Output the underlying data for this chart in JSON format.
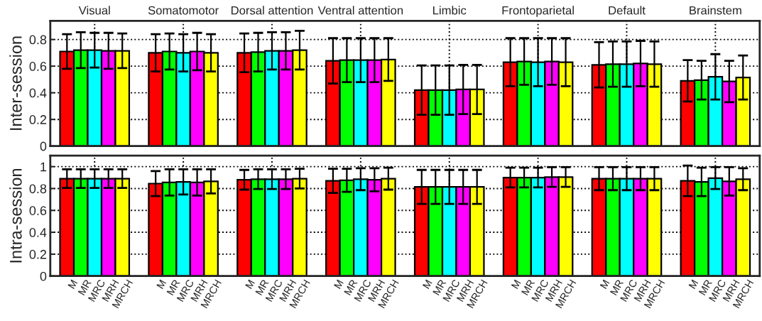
{
  "chart_data": [
    {
      "type": "bar",
      "ylabel": "Inter-session",
      "categories": [
        "Visual",
        "Somatomotor",
        "Dorsal attention",
        "Ventral attention",
        "Limbic",
        "Frontoparietal",
        "Default",
        "Brainstem"
      ],
      "ylim": [
        0,
        0.94
      ],
      "yticks": [
        0,
        0.2,
        0.4,
        0.6,
        0.8
      ],
      "grid": true,
      "series": [
        {
          "color": "#ff0000",
          "values": [
            0.71,
            0.7,
            0.7,
            0.64,
            0.42,
            0.63,
            0.61,
            0.49
          ],
          "errors": [
            0.13,
            0.14,
            0.145,
            0.17,
            0.185,
            0.18,
            0.17,
            0.155
          ]
        },
        {
          "color": "#00ff00",
          "values": [
            0.72,
            0.71,
            0.705,
            0.645,
            0.42,
            0.635,
            0.615,
            0.495
          ],
          "errors": [
            0.135,
            0.135,
            0.145,
            0.165,
            0.185,
            0.175,
            0.17,
            0.145
          ]
        },
        {
          "color": "#00ffff",
          "values": [
            0.72,
            0.7,
            0.715,
            0.645,
            0.42,
            0.63,
            0.615,
            0.52
          ],
          "errors": [
            0.13,
            0.14,
            0.14,
            0.165,
            0.185,
            0.18,
            0.17,
            0.17
          ]
        },
        {
          "color": "#ff00ff",
          "values": [
            0.715,
            0.71,
            0.715,
            0.645,
            0.425,
            0.635,
            0.62,
            0.485
          ],
          "errors": [
            0.135,
            0.14,
            0.14,
            0.165,
            0.185,
            0.175,
            0.17,
            0.155
          ]
        },
        {
          "color": "#ffff00",
          "values": [
            0.715,
            0.7,
            0.72,
            0.65,
            0.425,
            0.63,
            0.615,
            0.515
          ],
          "errors": [
            0.13,
            0.14,
            0.145,
            0.16,
            0.185,
            0.18,
            0.17,
            0.165
          ]
        }
      ]
    },
    {
      "type": "bar",
      "ylabel": "Intra-session",
      "categories": [
        null,
        null,
        null,
        null,
        null,
        null,
        null,
        null
      ],
      "ylim": [
        0,
        1.1
      ],
      "yticks": [
        0,
        0.2,
        0.4,
        0.6,
        0.8,
        1
      ],
      "grid": true,
      "tick_labels": "y",
      "series": [
        {
          "name": "M",
          "color": "#ff0000",
          "values": [
            0.89,
            0.845,
            0.88,
            0.87,
            0.815,
            0.9,
            0.89,
            0.87
          ],
          "errors": [
            0.085,
            0.115,
            0.09,
            0.11,
            0.155,
            0.09,
            0.105,
            0.14
          ]
        },
        {
          "name": "MR",
          "color": "#00ff00",
          "values": [
            0.89,
            0.855,
            0.885,
            0.875,
            0.815,
            0.9,
            0.89,
            0.86
          ],
          "errors": [
            0.085,
            0.12,
            0.09,
            0.105,
            0.155,
            0.09,
            0.105,
            0.13
          ]
        },
        {
          "name": "MRC",
          "color": "#00ffff",
          "values": [
            0.89,
            0.86,
            0.885,
            0.885,
            0.815,
            0.9,
            0.89,
            0.895
          ],
          "errors": [
            0.085,
            0.115,
            0.09,
            0.1,
            0.155,
            0.09,
            0.105,
            0.1
          ]
        },
        {
          "name": "MRH",
          "color": "#ff00ff",
          "values": [
            0.89,
            0.855,
            0.885,
            0.88,
            0.815,
            0.905,
            0.89,
            0.865
          ],
          "errors": [
            0.085,
            0.12,
            0.09,
            0.105,
            0.155,
            0.09,
            0.105,
            0.13
          ]
        },
        {
          "name": "MRCH",
          "color": "#ffff00",
          "values": [
            0.89,
            0.865,
            0.89,
            0.89,
            0.815,
            0.905,
            0.89,
            0.885
          ],
          "errors": [
            0.085,
            0.11,
            0.09,
            0.1,
            0.155,
            0.09,
            0.105,
            0.1
          ]
        }
      ]
    }
  ]
}
